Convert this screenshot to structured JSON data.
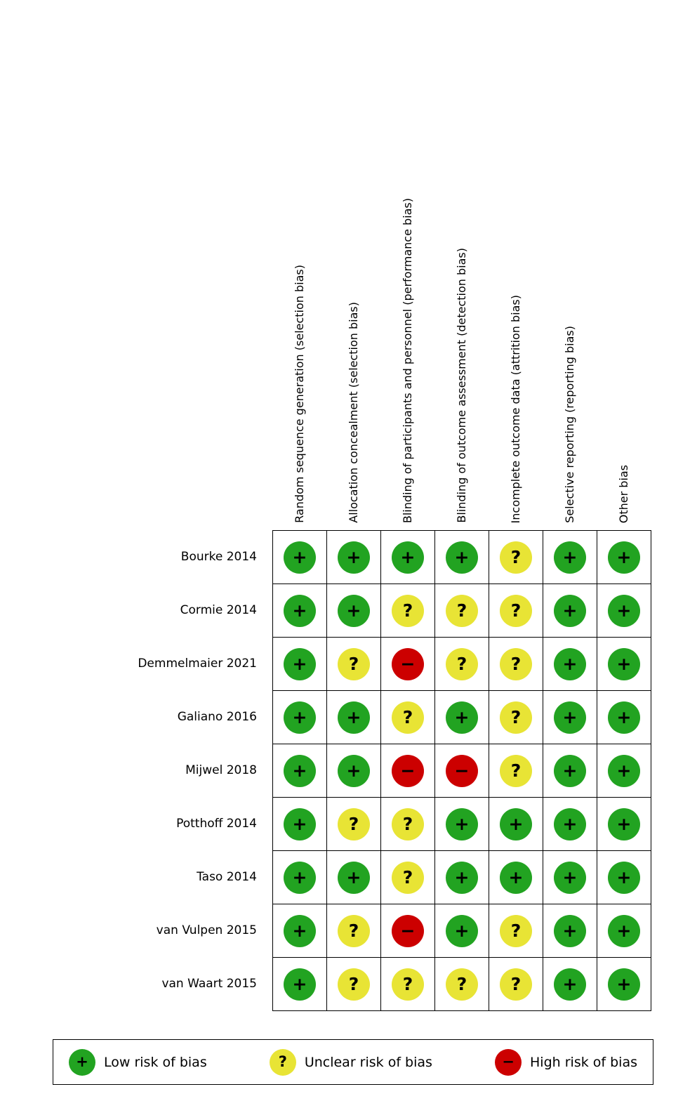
{
  "chart_data": {
    "type": "table",
    "title": "",
    "columns": [
      "Random sequence generation (selection bias)",
      "Allocation concealment (selection bias)",
      "Blinding of participants and personnel (performance bias)",
      "Blinding of outcome assessment (detection bias)",
      "Incomplete outcome data (attrition bias)",
      "Selective reporting (reporting bias)",
      "Other bias"
    ],
    "rows": [
      {
        "study": "Bourke 2014",
        "ratings": [
          "low",
          "low",
          "low",
          "low",
          "unclear",
          "low",
          "low"
        ]
      },
      {
        "study": "Cormie 2014",
        "ratings": [
          "low",
          "low",
          "unclear",
          "unclear",
          "unclear",
          "low",
          "low"
        ]
      },
      {
        "study": "Demmelmaier 2021",
        "ratings": [
          "low",
          "unclear",
          "high",
          "unclear",
          "unclear",
          "low",
          "low"
        ]
      },
      {
        "study": "Galiano 2016",
        "ratings": [
          "low",
          "low",
          "unclear",
          "low",
          "unclear",
          "low",
          "low"
        ]
      },
      {
        "study": "Mijwel 2018",
        "ratings": [
          "low",
          "low",
          "high",
          "high",
          "unclear",
          "low",
          "low"
        ]
      },
      {
        "study": "Potthoff 2014",
        "ratings": [
          "low",
          "unclear",
          "unclear",
          "low",
          "low",
          "low",
          "low"
        ]
      },
      {
        "study": "Taso 2014",
        "ratings": [
          "low",
          "low",
          "unclear",
          "low",
          "low",
          "low",
          "low"
        ]
      },
      {
        "study": "van Vulpen 2015",
        "ratings": [
          "low",
          "unclear",
          "high",
          "low",
          "unclear",
          "low",
          "low"
        ]
      },
      {
        "study": "van Waart 2015",
        "ratings": [
          "low",
          "unclear",
          "unclear",
          "unclear",
          "unclear",
          "low",
          "low"
        ]
      }
    ],
    "legend": [
      {
        "key": "low",
        "symbol": "+",
        "label": "Low risk of bias"
      },
      {
        "key": "unclear",
        "symbol": "?",
        "label": "Unclear risk of bias"
      },
      {
        "key": "high",
        "symbol": "−",
        "label": "High risk of bias"
      }
    ],
    "legend_position": "bottom"
  },
  "symbols": {
    "low": "+",
    "unclear": "?",
    "high": "−"
  },
  "colors": {
    "low": "#22a321",
    "unclear": "#e8e435",
    "high": "#cc0000",
    "symbol": "#000000",
    "border": "#000000"
  }
}
